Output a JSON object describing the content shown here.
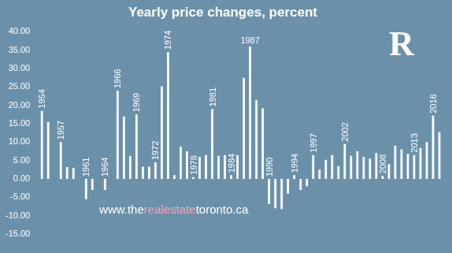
{
  "chart_data": {
    "type": "bar",
    "title": "Yearly price changes, percent",
    "categories": [
      "1954",
      null,
      null,
      "1957",
      null,
      null,
      null,
      "1961",
      null,
      null,
      "1964",
      null,
      "1966",
      null,
      null,
      "1969",
      null,
      null,
      "1972",
      null,
      "1974",
      null,
      null,
      null,
      "1978",
      null,
      null,
      "1981",
      null,
      null,
      "1984",
      null,
      null,
      "1987",
      null,
      null,
      "1990",
      null,
      null,
      null,
      "1994",
      null,
      null,
      "1997",
      null,
      null,
      null,
      null,
      "2002",
      null,
      null,
      null,
      null,
      null,
      "2008",
      null,
      null,
      null,
      null,
      "2013",
      null,
      null,
      "2016",
      null
    ],
    "values": [
      18.5,
      15.5,
      0,
      10,
      3.2,
      3,
      0,
      -5.5,
      -3,
      0,
      -3,
      0,
      24,
      17,
      6.3,
      17.5,
      3.3,
      3.3,
      4.5,
      25.2,
      34.5,
      1,
      8.8,
      7.5,
      0.5,
      6,
      6.5,
      19,
      6.3,
      6.5,
      1,
      6.5,
      27.5,
      36,
      21.5,
      19.2,
      -6.8,
      -8,
      -8.2,
      -4,
      1,
      -3,
      -2,
      6.5,
      2.5,
      5.2,
      6.5,
      3.5,
      9.5,
      6.3,
      7.5,
      6,
      5.5,
      7,
      0.8,
      4,
      9,
      8,
      6.8,
      6.5,
      8.4,
      10,
      17.2,
      12.7
    ],
    "color": "#ffffff",
    "ylim": [
      -15,
      40
    ],
    "yticks": [
      {
        "value": -15,
        "label": "-15.00"
      },
      {
        "value": -10,
        "label": "-10.00"
      },
      {
        "value": -5,
        "label": "-5.00"
      },
      {
        "value": 0,
        "label": "0.00"
      },
      {
        "value": 5,
        "label": "5.00"
      },
      {
        "value": 10,
        "label": "10.00"
      },
      {
        "value": 15,
        "label": "15.00"
      },
      {
        "value": 20,
        "label": "20.00"
      },
      {
        "value": 25,
        "label": "25.00"
      },
      {
        "value": 30,
        "label": "30.00"
      },
      {
        "value": 35,
        "label": "35.00"
      },
      {
        "value": 40,
        "label": "40.00"
      }
    ],
    "grid": false,
    "annotations": [
      "www.therealestatetoronto.ca",
      "R"
    ]
  }
}
